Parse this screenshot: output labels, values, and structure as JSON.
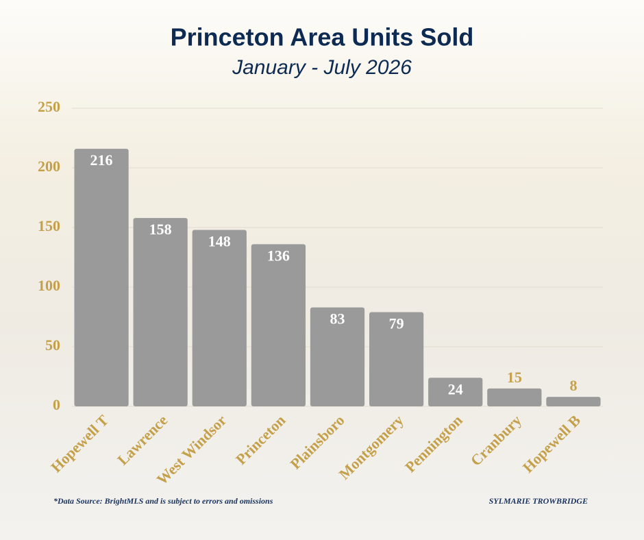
{
  "chart_data": {
    "type": "bar",
    "title": "Princeton Area Units Sold",
    "subtitle": "January - July 2026",
    "categories": [
      "Hopewell T",
      "Lawrence",
      "West Windsor",
      "Princeton",
      "Plainsboro",
      "Montgomery",
      "Pennington",
      "Cranbury",
      "Hopewell B"
    ],
    "values": [
      216,
      158,
      148,
      136,
      83,
      79,
      24,
      15,
      8
    ],
    "color": "#9a9a9a",
    "ylim": [
      0,
      250
    ],
    "yticks": [
      0,
      50,
      100,
      150,
      200,
      250
    ],
    "grid": true,
    "annotations": [
      "*Data Source: BrightMLS and is subject to errors and omissions",
      "SYLMARIE TROWBRIDGE"
    ]
  }
}
